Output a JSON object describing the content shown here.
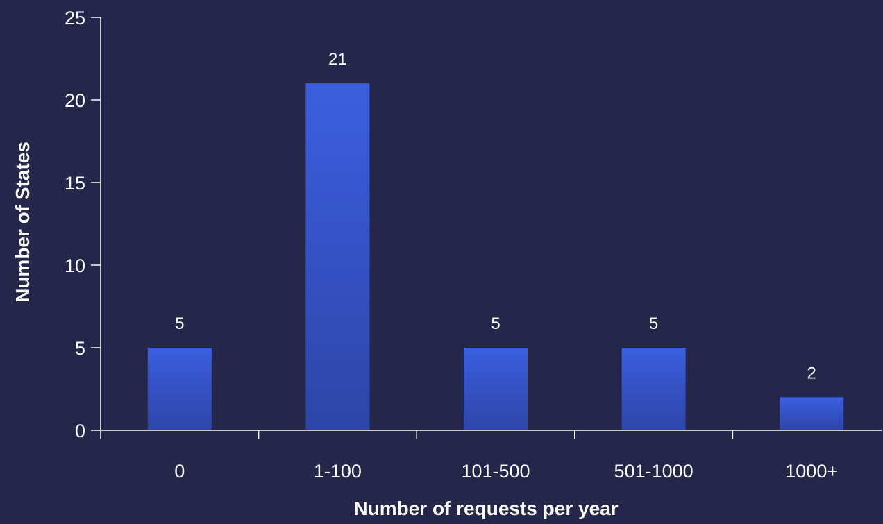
{
  "chart_data": {
    "type": "bar",
    "categories": [
      "0",
      "1-100",
      "101-500",
      "501-1000",
      "1000+"
    ],
    "values": [
      5,
      21,
      5,
      5,
      2
    ],
    "data_labels": [
      "5",
      "21",
      "5",
      "5",
      "2"
    ],
    "title": "",
    "xlabel": "Number of requests per year",
    "ylabel": "Number of States",
    "ylim": [
      0,
      25
    ],
    "yticks": [
      0,
      5,
      10,
      15,
      20,
      25
    ],
    "grid": false,
    "legend": "none"
  },
  "colors": {
    "background": "#24264a",
    "bar_top": "#3b5fe0",
    "bar_bottom": "#2e45a8",
    "axis": "#ffffff",
    "text": "#ffffff"
  }
}
